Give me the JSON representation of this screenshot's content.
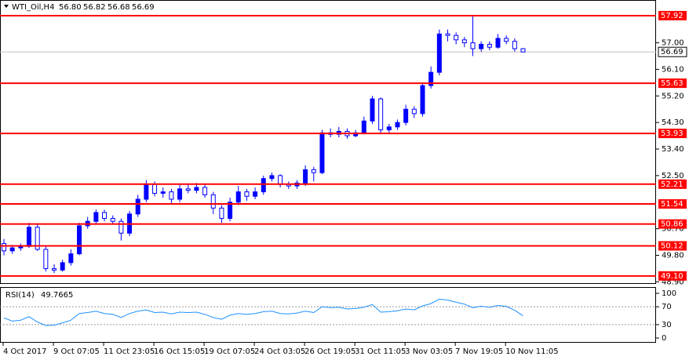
{
  "chart_data": [
    {
      "type": "candlestick",
      "title": "WTI_Oil,H4",
      "header_values": [
        {
          "value": 56.8,
          "label": "56.80"
        },
        56.82,
        56.68,
        56.69
      ],
      "categories": [
        "4 Oct 2017",
        null,
        null,
        null,
        null,
        null,
        "9 Oct 07:05",
        null,
        null,
        null,
        null,
        null,
        "11 Oct 23:05",
        null,
        null,
        null,
        null,
        null,
        "16 Oct 15:05",
        null,
        null,
        null,
        null,
        null,
        "19 Oct 07:05",
        null,
        null,
        null,
        null,
        null,
        "24 Oct 03:05",
        null,
        null,
        null,
        null,
        null,
        "26 Oct 19:05",
        null,
        null,
        null,
        null,
        null,
        "31 Oct 11:05",
        null,
        null,
        null,
        null,
        null,
        "3 Nov 03:05",
        null,
        null,
        null,
        null,
        null,
        "7 Nov 19:05",
        null,
        null,
        null,
        null,
        null,
        "10 Nov 11:05",
        null,
        null
      ],
      "open": [
        50.2,
        49.95,
        50.05,
        50.1,
        50.75,
        50.0,
        49.35,
        49.3,
        49.55,
        49.85,
        50.8,
        50.95,
        51.25,
        51.05,
        50.95,
        50.55,
        51.2,
        51.7,
        52.2,
        51.9,
        51.95,
        51.7,
        52.05,
        52.0,
        52.1,
        51.85,
        51.4,
        51.05,
        51.6,
        51.95,
        51.8,
        51.95,
        52.4,
        52.5,
        52.2,
        52.15,
        52.25,
        52.7,
        52.6,
        53.95,
        53.9,
        54.0,
        53.85,
        53.95,
        54.35,
        55.1,
        54.05,
        54.15,
        54.3,
        54.75,
        54.6,
        55.55,
        56.0,
        57.3,
        57.25,
        57.1,
        57.0,
        56.8,
        56.95,
        56.85,
        57.15,
        57.05,
        56.8
      ],
      "high": [
        50.35,
        50.15,
        50.2,
        50.9,
        50.85,
        50.1,
        49.5,
        49.65,
        50.0,
        50.9,
        51.1,
        51.35,
        51.35,
        51.15,
        51.05,
        51.3,
        51.85,
        52.35,
        52.3,
        52.1,
        52.05,
        52.2,
        52.2,
        52.25,
        52.2,
        51.95,
        51.5,
        51.75,
        52.15,
        52.05,
        52.1,
        52.5,
        52.6,
        52.55,
        52.3,
        52.35,
        52.85,
        52.8,
        54.05,
        54.1,
        54.15,
        54.1,
        54.05,
        54.5,
        55.2,
        55.15,
        54.25,
        54.4,
        54.9,
        54.85,
        55.65,
        56.2,
        57.45,
        57.45,
        57.35,
        57.2,
        57.92,
        57.05,
        57.05,
        57.3,
        57.25,
        57.15,
        56.82
      ],
      "low": [
        49.8,
        49.85,
        49.95,
        50.05,
        49.95,
        49.25,
        49.2,
        49.25,
        49.45,
        49.8,
        50.7,
        50.85,
        50.95,
        50.85,
        50.3,
        50.45,
        51.1,
        51.6,
        51.8,
        51.75,
        51.55,
        51.6,
        51.9,
        51.9,
        51.75,
        51.2,
        50.9,
        50.95,
        51.5,
        51.65,
        51.7,
        51.85,
        52.3,
        52.1,
        52.05,
        52.05,
        52.15,
        52.3,
        52.55,
        53.8,
        53.8,
        53.75,
        53.8,
        53.9,
        54.25,
        53.95,
        53.95,
        54.05,
        54.2,
        54.45,
        54.5,
        55.45,
        55.9,
        57.05,
        56.95,
        56.85,
        56.55,
        56.7,
        56.75,
        56.8,
        56.95,
        56.7,
        56.68
      ],
      "close": [
        49.95,
        50.05,
        50.1,
        50.75,
        50.0,
        49.35,
        49.3,
        49.55,
        49.85,
        50.8,
        50.95,
        51.25,
        51.05,
        50.95,
        50.55,
        51.2,
        51.7,
        52.2,
        51.9,
        51.95,
        51.7,
        52.05,
        52.0,
        52.1,
        51.85,
        51.4,
        51.05,
        51.6,
        51.95,
        51.8,
        51.95,
        52.4,
        52.5,
        52.2,
        52.15,
        52.25,
        52.7,
        52.6,
        53.95,
        53.9,
        54.0,
        53.85,
        53.95,
        54.35,
        55.1,
        54.05,
        54.15,
        54.3,
        54.75,
        54.6,
        55.55,
        56.0,
        57.3,
        57.25,
        57.1,
        57.0,
        56.8,
        56.95,
        56.85,
        57.15,
        57.05,
        56.8,
        56.69
      ],
      "up_color": "#0000ff",
      "down_color": "#0000ff",
      "ylim": [
        48.83,
        58.45
      ],
      "yticks": [
        {
          "value": 57.0,
          "label": "57.00"
        },
        {
          "value": 56.1,
          "label": "56.10"
        },
        {
          "value": 55.2,
          "label": "55.20"
        },
        {
          "value": 54.3,
          "label": "54.30"
        },
        {
          "value": 53.4,
          "label": "53.40"
        },
        {
          "value": 52.5,
          "label": "52.50"
        },
        {
          "value": 50.7,
          "label": "50.70"
        },
        {
          "value": 49.8,
          "label": "49.80"
        },
        {
          "value": 48.9,
          "label": "48.90"
        }
      ],
      "levels": [
        57.92,
        55.63,
        53.93,
        52.21,
        51.54,
        50.86,
        50.12,
        {
          "value": 49.1,
          "label": "49.10"
        }
      ],
      "level_color": "#ff0000",
      "last_price": 56.69
    },
    {
      "type": "line",
      "title": "RSI(14)",
      "current": 49.7665,
      "values": [
        45,
        38,
        40,
        48,
        36,
        28,
        29,
        34,
        40,
        55,
        57,
        60,
        55,
        53,
        46,
        55,
        60,
        63,
        57,
        58,
        54,
        58,
        57,
        58,
        53,
        46,
        42,
        51,
        55,
        53,
        55,
        59,
        60,
        55,
        54,
        56,
        60,
        57,
        70,
        68,
        69,
        65,
        66,
        69,
        75,
        58,
        59,
        61,
        65,
        63,
        72,
        77,
        87,
        85,
        80,
        76,
        68,
        71,
        69,
        73,
        71,
        62,
        49.7665
      ],
      "color": "#1e90ff",
      "ylim": [
        -10.5,
        112.3
      ],
      "yticks": [
        0,
        30,
        70,
        100
      ],
      "dotted_levels": [
        30,
        70
      ]
    }
  ]
}
